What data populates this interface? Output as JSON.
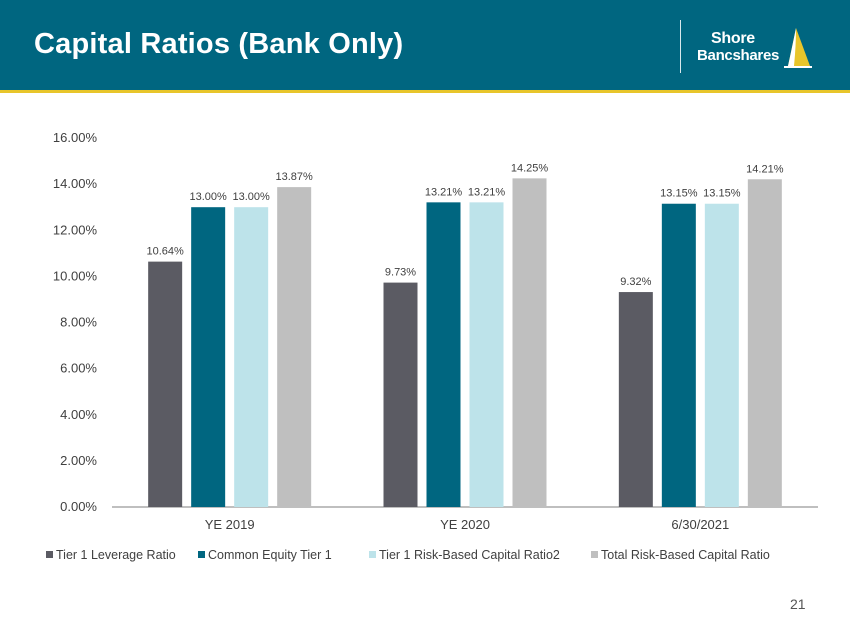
{
  "header": {
    "title": "Capital Ratios (Bank Only)",
    "logo_line1": "Shore",
    "logo_line2": "Bancshares",
    "bg_color": "#006680",
    "rule_color": "#e8c52a"
  },
  "chart_data": {
    "type": "bar",
    "categories": [
      "YE 2019",
      "YE 2020",
      "6/30/2021"
    ],
    "series": [
      {
        "name": "Tier 1 Leverage Ratio",
        "values": [
          10.64,
          9.73,
          9.32
        ],
        "labels": [
          "10.64%",
          "9.73%",
          "9.32%"
        ],
        "color": "#5b5b63"
      },
      {
        "name": "Common Equity Tier 1",
        "values": [
          13.0,
          13.21,
          13.15
        ],
        "labels": [
          "13.00%",
          "13.21%",
          "13.15%"
        ],
        "color": "#006680"
      },
      {
        "name": "Tier 1 Risk-Based Capital Ratio2",
        "values": [
          13.0,
          13.21,
          13.15
        ],
        "labels": [
          "13.00%",
          "13.21%",
          "13.15%"
        ],
        "color": "#bde3ea"
      },
      {
        "name": "Total Risk-Based Capital Ratio",
        "values": [
          13.87,
          14.25,
          14.21
        ],
        "labels": [
          "13.87%",
          "14.25%",
          "14.21%"
        ],
        "color": "#bfbfbf"
      }
    ],
    "ylim": [
      0,
      16
    ],
    "yticks": [
      0,
      2,
      4,
      6,
      8,
      10,
      12,
      14,
      16
    ],
    "ytick_labels": [
      "0.00%",
      "2.00%",
      "4.00%",
      "6.00%",
      "8.00%",
      "10.00%",
      "12.00%",
      "14.00%",
      "16.00%"
    ],
    "grid": false,
    "legend_position": "bottom"
  },
  "footer": {
    "page_number": "21"
  }
}
